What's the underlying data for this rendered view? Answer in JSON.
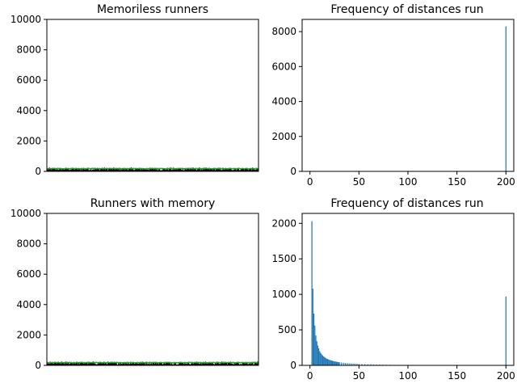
{
  "chart_data": [
    {
      "type": "scatter",
      "title": "Memoriless runners",
      "xlabel": "",
      "ylabel": "",
      "ylim": [
        0,
        10000
      ],
      "yticks": [
        0,
        2000,
        4000,
        6000,
        8000,
        10000
      ],
      "ytick_labels": [
        "0",
        "2000",
        "4000",
        "6000",
        "8000",
        "10000"
      ],
      "xticks": [],
      "series": [
        {
          "color": "#000000",
          "band": [
            0,
            200
          ]
        },
        {
          "color": "#2ca02c",
          "band": [
            200,
            200
          ]
        }
      ],
      "runner_count": 10000,
      "grid": false
    },
    {
      "type": "bar",
      "title": "Frequency of distances run",
      "xlabel": "",
      "ylabel": "",
      "xlim": [
        -8,
        208
      ],
      "ylim": [
        0,
        8700
      ],
      "xticks": [
        0,
        50,
        100,
        150,
        200
      ],
      "xtick_labels": [
        "0",
        "50",
        "100",
        "150",
        "200"
      ],
      "yticks": [
        0,
        2000,
        4000,
        6000,
        8000
      ],
      "ytick_labels": [
        "0",
        "2000",
        "4000",
        "6000",
        "8000"
      ],
      "bins": [
        {
          "x": 200,
          "value": 8300
        }
      ],
      "color": "#1f77b4",
      "grid": false
    },
    {
      "type": "scatter",
      "title": "Runners with memory",
      "xlabel": "",
      "ylabel": "",
      "ylim": [
        0,
        10000
      ],
      "yticks": [
        0,
        2000,
        4000,
        6000,
        8000,
        10000
      ],
      "ytick_labels": [
        "0",
        "2000",
        "4000",
        "6000",
        "8000",
        "10000"
      ],
      "xticks": [],
      "series": [
        {
          "color": "#000000",
          "band": [
            0,
            200
          ]
        },
        {
          "color": "#2ca02c",
          "band": [
            200,
            200
          ]
        }
      ],
      "runner_count": 10000,
      "grid": false
    },
    {
      "type": "bar",
      "title": "Frequency of distances run",
      "xlabel": "",
      "ylabel": "",
      "xlim": [
        -8,
        208
      ],
      "ylim": [
        0,
        2140
      ],
      "xticks": [
        0,
        50,
        100,
        150,
        200
      ],
      "xtick_labels": [
        "0",
        "50",
        "100",
        "150",
        "200"
      ],
      "yticks": [
        0,
        500,
        1000,
        1500,
        2000
      ],
      "ytick_labels": [
        "0",
        "500",
        "1000",
        "1500",
        "2000"
      ],
      "bins": [
        {
          "x": 2,
          "value": 2030
        },
        {
          "x": 3,
          "value": 1080
        },
        {
          "x": 4,
          "value": 730
        },
        {
          "x": 5,
          "value": 560
        },
        {
          "x": 6,
          "value": 420
        },
        {
          "x": 7,
          "value": 340
        },
        {
          "x": 8,
          "value": 280
        },
        {
          "x": 9,
          "value": 240
        },
        {
          "x": 10,
          "value": 200
        },
        {
          "x": 11,
          "value": 175
        },
        {
          "x": 12,
          "value": 155
        },
        {
          "x": 13,
          "value": 140
        },
        {
          "x": 14,
          "value": 125
        },
        {
          "x": 15,
          "value": 115
        },
        {
          "x": 16,
          "value": 105
        },
        {
          "x": 17,
          "value": 95
        },
        {
          "x": 18,
          "value": 90
        },
        {
          "x": 19,
          "value": 82
        },
        {
          "x": 20,
          "value": 78
        },
        {
          "x": 21,
          "value": 72
        },
        {
          "x": 22,
          "value": 68
        },
        {
          "x": 23,
          "value": 64
        },
        {
          "x": 24,
          "value": 60
        },
        {
          "x": 25,
          "value": 57
        },
        {
          "x": 26,
          "value": 54
        },
        {
          "x": 27,
          "value": 51
        },
        {
          "x": 28,
          "value": 48
        },
        {
          "x": 29,
          "value": 46
        },
        {
          "x": 30,
          "value": 44
        },
        {
          "x": 32,
          "value": 40
        },
        {
          "x": 34,
          "value": 37
        },
        {
          "x": 36,
          "value": 34
        },
        {
          "x": 38,
          "value": 31
        },
        {
          "x": 40,
          "value": 29
        },
        {
          "x": 42,
          "value": 27
        },
        {
          "x": 44,
          "value": 25
        },
        {
          "x": 46,
          "value": 23
        },
        {
          "x": 48,
          "value": 22
        },
        {
          "x": 50,
          "value": 20
        },
        {
          "x": 53,
          "value": 18
        },
        {
          "x": 56,
          "value": 17
        },
        {
          "x": 59,
          "value": 15
        },
        {
          "x": 62,
          "value": 14
        },
        {
          "x": 65,
          "value": 13
        },
        {
          "x": 68,
          "value": 12
        },
        {
          "x": 71,
          "value": 11
        },
        {
          "x": 74,
          "value": 10
        },
        {
          "x": 78,
          "value": 9
        },
        {
          "x": 82,
          "value": 8
        },
        {
          "x": 86,
          "value": 7
        },
        {
          "x": 90,
          "value": 7
        },
        {
          "x": 95,
          "value": 6
        },
        {
          "x": 100,
          "value": 6
        },
        {
          "x": 105,
          "value": 5
        },
        {
          "x": 110,
          "value": 5
        },
        {
          "x": 115,
          "value": 4
        },
        {
          "x": 120,
          "value": 4
        },
        {
          "x": 125,
          "value": 4
        },
        {
          "x": 130,
          "value": 3
        },
        {
          "x": 135,
          "value": 3
        },
        {
          "x": 140,
          "value": 3
        },
        {
          "x": 145,
          "value": 2
        },
        {
          "x": 150,
          "value": 2
        },
        {
          "x": 155,
          "value": 2
        },
        {
          "x": 160,
          "value": 2
        },
        {
          "x": 165,
          "value": 1
        },
        {
          "x": 170,
          "value": 1
        },
        {
          "x": 175,
          "value": 1
        },
        {
          "x": 180,
          "value": 1
        },
        {
          "x": 200,
          "value": 970
        }
      ],
      "color": "#1f77b4",
      "grid": false
    }
  ]
}
